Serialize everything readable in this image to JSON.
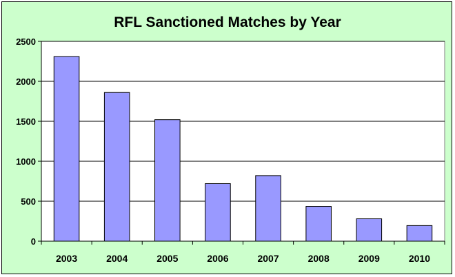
{
  "chart_data": {
    "type": "bar",
    "title": "RFL Sanctioned Matches by Year",
    "xlabel": "",
    "ylabel": "",
    "categories": [
      "2003",
      "2004",
      "2005",
      "2006",
      "2007",
      "2008",
      "2009",
      "2010"
    ],
    "values": [
      2310,
      1860,
      1520,
      720,
      820,
      435,
      280,
      195
    ],
    "ylim": [
      0,
      2500
    ],
    "yticks": [
      "0",
      "500",
      "1000",
      "1500",
      "2000",
      "2500"
    ],
    "grid": true,
    "legend": "none",
    "colors": {
      "background": "#ccffcc",
      "plot_area": "#ffffff",
      "bar_fill": "#9999ff",
      "bar_stroke": "#000000",
      "gridline": "#000000"
    }
  }
}
